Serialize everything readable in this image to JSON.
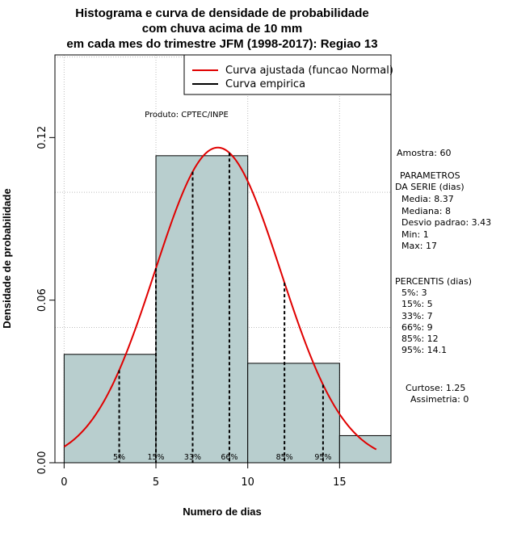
{
  "chart_data": {
    "type": "bar",
    "title_lines": [
      "Histograma e curva de densidade de probabilidade",
      "com chuva acima de 10 mm",
      "em cada mes do trimestre JFM (1998-2017): Regiao 13"
    ],
    "xlabel": "Numero de dias",
    "ylabel": "Densidade de probabilidade",
    "xlim": [
      -0.5,
      17.8
    ],
    "ylim": [
      0,
      0.1505
    ],
    "x_ticks": [
      0,
      5,
      10,
      15
    ],
    "y_ticks": [
      0.0,
      0.06,
      0.12
    ],
    "y_tick_labels": [
      "0.00",
      "0.06",
      "0.12"
    ],
    "grid": true,
    "bins": [
      {
        "start": 0,
        "end": 5,
        "density": 0.04
      },
      {
        "start": 5,
        "end": 10,
        "density": 0.1133
      },
      {
        "start": 10,
        "end": 15,
        "density": 0.0367
      },
      {
        "start": 15,
        "end": 17.8,
        "density": 0.01
      }
    ],
    "bar_color": "#b8cece",
    "curve": {
      "name": "Curva ajustada (funcao Normal)",
      "color": "#e00000",
      "mean": 8.37,
      "sd": 3.43,
      "x_range": [
        0,
        17
      ]
    },
    "legend": {
      "position": "top-right",
      "entries": [
        {
          "label": "Curva ajustada (funcao Normal)",
          "color": "#e00000"
        },
        {
          "label": "Curva empirica",
          "color": "#000000"
        }
      ]
    },
    "percentile_lines": [
      {
        "label": "5%",
        "x": 3
      },
      {
        "label": "15%",
        "x": 5
      },
      {
        "label": "33%",
        "x": 7
      },
      {
        "label": "66%",
        "x": 9
      },
      {
        "label": "85%",
        "x": 12
      },
      {
        "label": "95%",
        "x": 14.1
      }
    ],
    "annotation": "Produto: CPTEC/INPE"
  },
  "side_panel": {
    "amostra": "Amostra: 60",
    "parametros_title": "PARAMETROS",
    "parametros_subtitle": "DA SERIE (dias)",
    "media": "Media: 8.37",
    "mediana": "Mediana: 8",
    "desvio": "Desvio padrao: 3.43",
    "min": "Min: 1",
    "max": "Max: 17",
    "percentis_title": "PERCENTIS (dias)",
    "p5": "5%: 3",
    "p15": "15%: 5",
    "p33": "33%: 7",
    "p66": "66%: 9",
    "p85": "85%: 12",
    "p95": "95%: 14.1",
    "curtose": "Curtose: 1.25",
    "assimetria": "Assimetria: 0"
  }
}
